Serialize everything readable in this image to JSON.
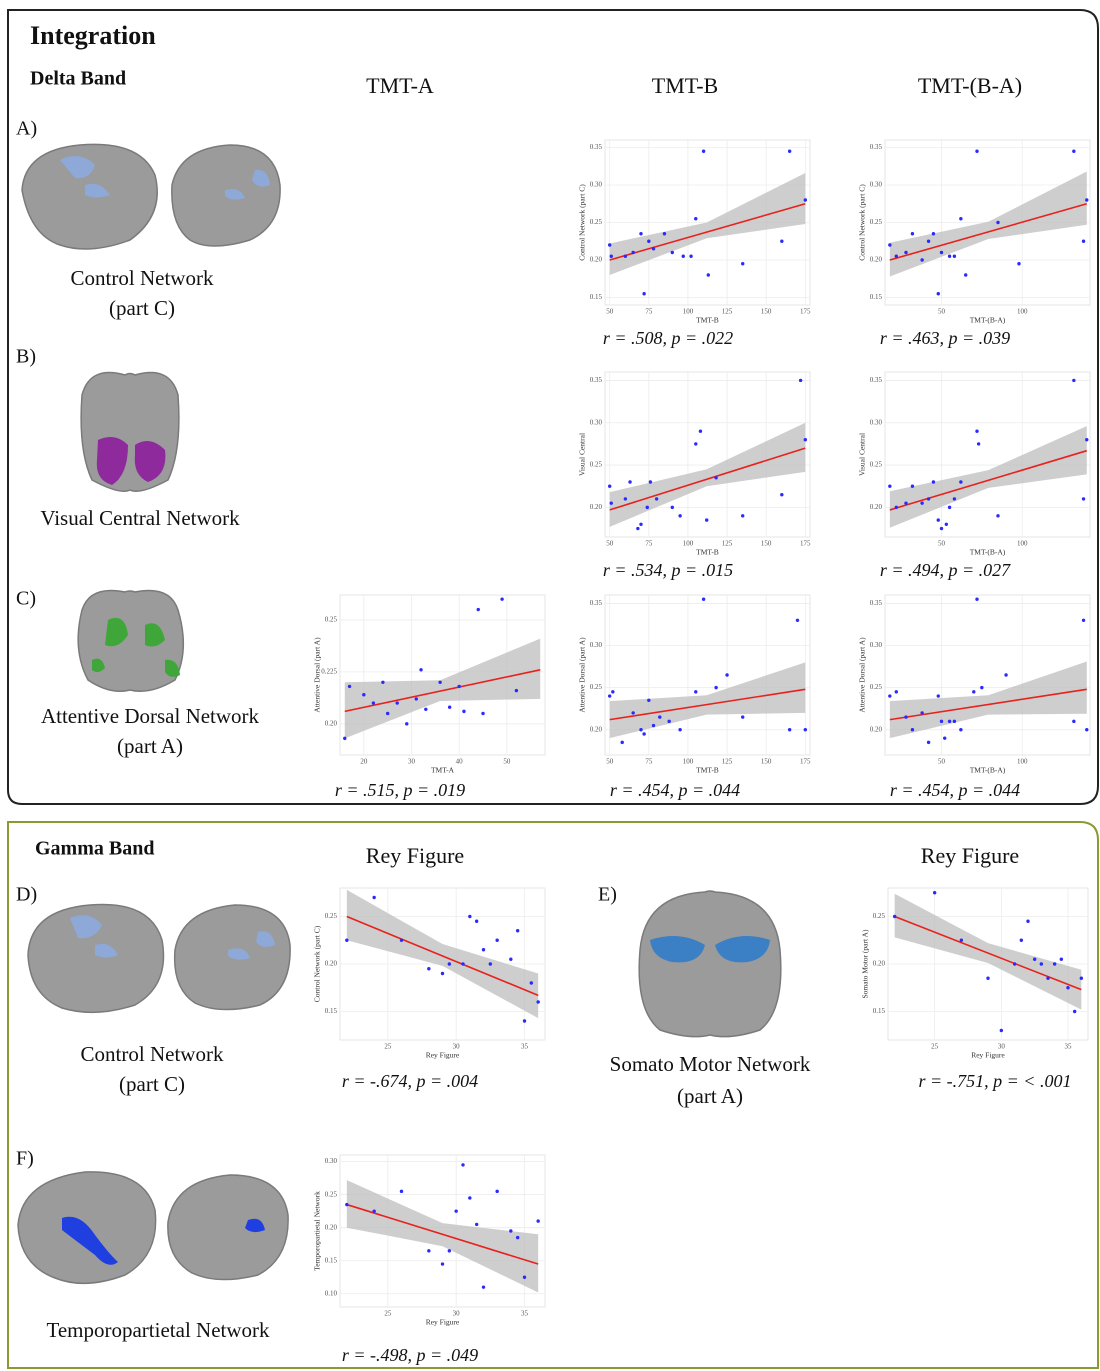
{
  "title": "Integration",
  "delta": {
    "heading": "Delta Band",
    "columns": [
      "TMT-A",
      "TMT-B",
      "TMT-(B-A)"
    ],
    "rows": [
      {
        "label": "A)",
        "caption": [
          "Control Network",
          "(part C)"
        ]
      },
      {
        "label": "B)",
        "caption": [
          "Visual Central Network"
        ]
      },
      {
        "label": "C)",
        "caption": [
          "Attentive Dorsal Network",
          "(part A)"
        ]
      }
    ]
  },
  "gamma": {
    "heading": "Gamma Band",
    "columns": [
      "Rey Figure",
      "Rey Figure"
    ],
    "panels": [
      {
        "label": "D)",
        "caption": [
          "Control Network",
          "(part C)"
        ]
      },
      {
        "label": "E)",
        "caption": [
          "Somato Motor Network",
          "(part A)"
        ]
      },
      {
        "label": "F)",
        "caption": [
          "Temporopartietal  Network"
        ]
      }
    ]
  },
  "chart_data": [
    {
      "type": "scatter",
      "x_label": "TMT-B",
      "y_label": "Control Network (part C)",
      "annotation": "r = .508, p = .022",
      "xlim": [
        47,
        178
      ],
      "ylim": [
        0.14,
        0.36
      ],
      "xticks": [
        50,
        75,
        100,
        125,
        150,
        175
      ],
      "yticks": [
        0.15,
        {
          "value": 0.2,
          "label": "0.20"
        },
        0.25,
        {
          "value": 0.3,
          "label": "0.30"
        },
        0.35
      ],
      "color": "#2a2aff",
      "fit_color": "#e8211d",
      "band_color": "#bdbdbd",
      "x": [
        50,
        51,
        60,
        65,
        70,
        72,
        75,
        78,
        85,
        90,
        97,
        102,
        105,
        110,
        113,
        135,
        160,
        165,
        175
      ],
      "values": [
        0.22,
        0.205,
        0.205,
        0.21,
        0.235,
        0.155,
        0.225,
        0.215,
        0.235,
        0.21,
        0.205,
        0.205,
        0.255,
        0.345,
        0.18,
        0.195,
        0.225,
        0.345,
        0.28
      ],
      "fit": {
        "x": [
          50,
          175
        ],
        "values": [
          0.2,
          0.275
        ]
      },
      "ci": {
        "x": [
          50,
          112,
          175
        ],
        "lower": [
          0.18,
          0.229,
          0.248
        ],
        "upper": [
          0.222,
          0.25,
          0.316
        ]
      }
    },
    {
      "type": "scatter",
      "x_label": "TMT-(B-A)",
      "y_label": "Control Network (part C)",
      "annotation": "r = .463, p = .039",
      "xlim": [
        15,
        142
      ],
      "ylim": [
        0.14,
        0.36
      ],
      "xticks": [
        50,
        100
      ],
      "yticks": [
        0.15,
        {
          "value": 0.2,
          "label": "0.20"
        },
        0.25,
        {
          "value": 0.3,
          "label": "0.30"
        },
        0.35
      ],
      "color": "#2a2aff",
      "fit_color": "#e8211d",
      "band_color": "#bdbdbd",
      "x": [
        18,
        22,
        28,
        32,
        38,
        42,
        45,
        48,
        50,
        55,
        58,
        62,
        65,
        72,
        85,
        98,
        132,
        138,
        140
      ],
      "values": [
        0.22,
        0.205,
        0.21,
        0.235,
        0.2,
        0.225,
        0.235,
        0.155,
        0.21,
        0.205,
        0.205,
        0.255,
        0.18,
        0.345,
        0.25,
        0.195,
        0.345,
        0.225,
        0.28
      ],
      "fit": {
        "x": [
          18,
          140
        ],
        "values": [
          0.2,
          0.275
        ]
      },
      "ci": {
        "x": [
          18,
          79,
          140
        ],
        "lower": [
          0.178,
          0.228,
          0.247
        ],
        "upper": [
          0.223,
          0.251,
          0.318
        ]
      }
    },
    {
      "type": "scatter",
      "x_label": "TMT-B",
      "y_label": "Visual Central",
      "annotation": "r = .534, p = .015",
      "xlim": [
        47,
        178
      ],
      "ylim": [
        0.165,
        0.36
      ],
      "xticks": [
        50,
        75,
        100,
        125,
        150,
        175
      ],
      "yticks": [
        {
          "value": 0.2,
          "label": "0.20"
        },
        0.25,
        {
          "value": 0.3,
          "label": "0.30"
        },
        0.35
      ],
      "color": "#2a2aff",
      "fit_color": "#e8211d",
      "band_color": "#bdbdbd",
      "x": [
        50,
        51,
        60,
        63,
        68,
        70,
        74,
        76,
        80,
        90,
        95,
        105,
        108,
        112,
        118,
        135,
        160,
        172,
        175
      ],
      "values": [
        0.225,
        0.205,
        0.21,
        0.23,
        0.175,
        0.18,
        0.2,
        0.23,
        0.21,
        0.2,
        0.19,
        0.275,
        0.29,
        0.185,
        0.235,
        0.19,
        0.215,
        0.35,
        0.28
      ],
      "fit": {
        "x": [
          50,
          175
        ],
        "values": [
          0.197,
          0.27
        ]
      },
      "ci": {
        "x": [
          50,
          112,
          175
        ],
        "lower": [
          0.177,
          0.225,
          0.242
        ],
        "upper": [
          0.218,
          0.245,
          0.3
        ]
      }
    },
    {
      "type": "scatter",
      "x_label": "TMT-(B-A)",
      "y_label": "Visual Central",
      "annotation": "r = .494, p = .027",
      "xlim": [
        15,
        142
      ],
      "ylim": [
        0.165,
        0.36
      ],
      "xticks": [
        50,
        100
      ],
      "yticks": [
        {
          "value": 0.2,
          "label": "0.20"
        },
        0.25,
        {
          "value": 0.3,
          "label": "0.30"
        },
        0.35
      ],
      "color": "#2a2aff",
      "fit_color": "#e8211d",
      "band_color": "#bdbdbd",
      "x": [
        18,
        22,
        28,
        32,
        38,
        42,
        45,
        48,
        50,
        53,
        55,
        58,
        62,
        72,
        73,
        85,
        132,
        138,
        140
      ],
      "values": [
        0.225,
        0.2,
        0.205,
        0.225,
        0.205,
        0.21,
        0.23,
        0.185,
        0.175,
        0.18,
        0.2,
        0.21,
        0.23,
        0.29,
        0.275,
        0.19,
        0.35,
        0.21,
        0.28
      ],
      "fit": {
        "x": [
          18,
          140
        ],
        "values": [
          0.197,
          0.267
        ]
      },
      "ci": {
        "x": [
          18,
          79,
          140
        ],
        "lower": [
          0.176,
          0.223,
          0.239
        ],
        "upper": [
          0.219,
          0.244,
          0.296
        ]
      }
    },
    {
      "type": "scatter",
      "x_label": "TMT-A",
      "y_label": "Attentive Dorsal (part A)",
      "annotation": "r = .515, p = .019",
      "xlim": [
        15,
        58
      ],
      "ylim": [
        0.185,
        0.262
      ],
      "xticks": [
        20,
        30,
        40,
        50
      ],
      "yticks": [
        {
          "value": 0.2,
          "label": "0.20"
        },
        {
          "value": 0.225,
          "label": "0.225"
        },
        {
          "value": 0.25,
          "label": "0.25"
        }
      ],
      "color": "#2a2aff",
      "fit_color": "#e8211d",
      "band_color": "#bdbdbd",
      "x": [
        16,
        17,
        20,
        22,
        24,
        25,
        27,
        29,
        31,
        32,
        33,
        36,
        38,
        40,
        41,
        44,
        45,
        49,
        52
      ],
      "values": [
        0.193,
        0.218,
        0.214,
        0.21,
        0.22,
        0.205,
        0.21,
        0.2,
        0.212,
        0.226,
        0.207,
        0.22,
        0.208,
        0.218,
        0.206,
        0.255,
        0.205,
        0.26,
        0.216
      ],
      "fit": {
        "x": [
          16,
          57
        ],
        "values": [
          0.206,
          0.226
        ]
      },
      "ci": {
        "x": [
          16,
          36,
          57
        ],
        "lower": [
          0.193,
          0.211,
          0.212
        ],
        "upper": [
          0.22,
          0.221,
          0.241
        ]
      }
    },
    {
      "type": "scatter",
      "x_label": "TMT-B",
      "y_label": "Attentive Dorsal (part A)",
      "annotation": "r = .454, p = .044",
      "xlim": [
        47,
        178
      ],
      "ylim": [
        0.17,
        0.36
      ],
      "xticks": [
        50,
        75,
        100,
        125,
        150,
        175
      ],
      "yticks": [
        {
          "value": 0.2,
          "label": "0.20"
        },
        0.25,
        {
          "value": 0.3,
          "label": "0.30"
        },
        0.35
      ],
      "color": "#2a2aff",
      "fit_color": "#e8211d",
      "band_color": "#bdbdbd",
      "x": [
        50,
        52,
        58,
        65,
        70,
        72,
        75,
        78,
        82,
        88,
        95,
        105,
        110,
        118,
        125,
        135,
        165,
        170,
        175
      ],
      "values": [
        0.24,
        0.245,
        0.185,
        0.22,
        0.2,
        0.195,
        0.235,
        0.205,
        0.215,
        0.21,
        0.2,
        0.245,
        0.355,
        0.25,
        0.265,
        0.215,
        0.2,
        0.33,
        0.2
      ],
      "fit": {
        "x": [
          50,
          175
        ],
        "values": [
          0.212,
          0.248
        ]
      },
      "ci": {
        "x": [
          50,
          112,
          175
        ],
        "lower": [
          0.19,
          0.218,
          0.22
        ],
        "upper": [
          0.234,
          0.241,
          0.28
        ]
      }
    },
    {
      "type": "scatter",
      "x_label": "TMT-(B-A)",
      "y_label": "Attentive Dorsal (part A)",
      "annotation": "r = .454, p = .044",
      "xlim": [
        15,
        142
      ],
      "ylim": [
        0.17,
        0.36
      ],
      "xticks": [
        50,
        100
      ],
      "yticks": [
        {
          "value": 0.2,
          "label": "0.20"
        },
        0.25,
        {
          "value": 0.3,
          "label": "0.30"
        },
        0.35
      ],
      "color": "#2a2aff",
      "fit_color": "#e8211d",
      "band_color": "#bdbdbd",
      "x": [
        18,
        22,
        28,
        32,
        38,
        42,
        48,
        50,
        52,
        55,
        58,
        62,
        70,
        72,
        75,
        90,
        132,
        138,
        140
      ],
      "values": [
        0.24,
        0.245,
        0.215,
        0.2,
        0.22,
        0.185,
        0.24,
        0.21,
        0.19,
        0.21,
        0.21,
        0.2,
        0.245,
        0.355,
        0.25,
        0.265,
        0.21,
        0.33,
        0.2
      ],
      "fit": {
        "x": [
          18,
          140
        ],
        "values": [
          0.212,
          0.248
        ]
      },
      "ci": {
        "x": [
          18,
          79,
          140
        ],
        "lower": [
          0.19,
          0.218,
          0.219
        ],
        "upper": [
          0.234,
          0.241,
          0.281
        ]
      }
    },
    {
      "type": "scatter",
      "x_label": "Rey Figure",
      "y_label": "Control Network (part C)",
      "annotation": "r = -.674, p = .004",
      "xlim": [
        21.5,
        36.5
      ],
      "ylim": [
        0.12,
        0.28
      ],
      "xticks": [
        25,
        30,
        35
      ],
      "yticks": [
        0.15,
        {
          "value": 0.2,
          "label": "0.20"
        },
        0.25
      ],
      "color": "#2a2aff",
      "fit_color": "#e8211d",
      "band_color": "#bdbdbd",
      "x": [
        22,
        24,
        26,
        28,
        29,
        29.5,
        30.5,
        31,
        31.5,
        32,
        32.5,
        33,
        34,
        34.5,
        35,
        35.5,
        36
      ],
      "values": [
        0.225,
        0.27,
        0.225,
        0.195,
        0.19,
        0.2,
        0.2,
        0.25,
        0.245,
        0.215,
        0.2,
        0.225,
        0.205,
        0.235,
        0.14,
        0.18,
        0.16
      ],
      "fit": {
        "x": [
          22,
          36
        ],
        "values": [
          0.25,
          0.167
        ]
      },
      "ci": {
        "x": [
          22,
          29,
          36
        ],
        "lower": [
          0.225,
          0.198,
          0.143
        ],
        "upper": [
          0.278,
          0.221,
          0.19
        ]
      }
    },
    {
      "type": "scatter",
      "x_label": "Rey Figure",
      "y_label": "Somato Motor (part A)",
      "annotation": "r = -.751, p = < .001",
      "xlim": [
        21.5,
        36.5
      ],
      "ylim": [
        0.12,
        0.28
      ],
      "xticks": [
        25,
        30,
        35
      ],
      "yticks": [
        0.15,
        {
          "value": 0.2,
          "label": "0.20"
        },
        0.25
      ],
      "color": "#2a2aff",
      "fit_color": "#e8211d",
      "band_color": "#bdbdbd",
      "x": [
        22,
        25,
        27,
        29,
        30,
        31,
        31.5,
        32,
        32.5,
        33,
        33.5,
        34,
        34.5,
        35,
        35.5,
        36
      ],
      "values": [
        0.25,
        0.275,
        0.225,
        0.185,
        0.13,
        0.2,
        0.225,
        0.245,
        0.205,
        0.2,
        0.185,
        0.2,
        0.205,
        0.175,
        0.15,
        0.185
      ],
      "fit": {
        "x": [
          22,
          36
        ],
        "values": [
          0.25,
          0.173
        ]
      },
      "ci": {
        "x": [
          22,
          29,
          36
        ],
        "lower": [
          0.228,
          0.201,
          0.152
        ],
        "upper": [
          0.274,
          0.222,
          0.194
        ]
      }
    },
    {
      "type": "scatter",
      "x_label": "Rey Figure",
      "y_label": "Temporopartietal Network",
      "annotation": "r = -.498, p = .049",
      "xlim": [
        21.5,
        36.5
      ],
      "ylim": [
        0.08,
        0.31
      ],
      "xticks": [
        25,
        30,
        35
      ],
      "yticks": [
        {
          "value": 0.1,
          "label": "0.10"
        },
        0.15,
        {
          "value": 0.2,
          "label": "0.20"
        },
        0.25,
        {
          "value": 0.3,
          "label": "0.30"
        }
      ],
      "color": "#2a2aff",
      "fit_color": "#e8211d",
      "band_color": "#bdbdbd",
      "x": [
        22,
        24,
        26,
        28,
        29,
        29.5,
        30,
        30.5,
        31,
        31.5,
        32,
        33,
        34,
        34.5,
        35,
        36
      ],
      "values": [
        0.235,
        0.225,
        0.255,
        0.165,
        0.145,
        0.165,
        0.225,
        0.295,
        0.245,
        0.205,
        0.11,
        0.255,
        0.195,
        0.185,
        0.125,
        0.21
      ],
      "fit": {
        "x": [
          22,
          36
        ],
        "values": [
          0.235,
          0.145
        ]
      },
      "ci": {
        "x": [
          22,
          29,
          36
        ],
        "lower": [
          0.2,
          0.172,
          0.102
        ],
        "upper": [
          0.272,
          0.207,
          0.19
        ]
      }
    }
  ]
}
